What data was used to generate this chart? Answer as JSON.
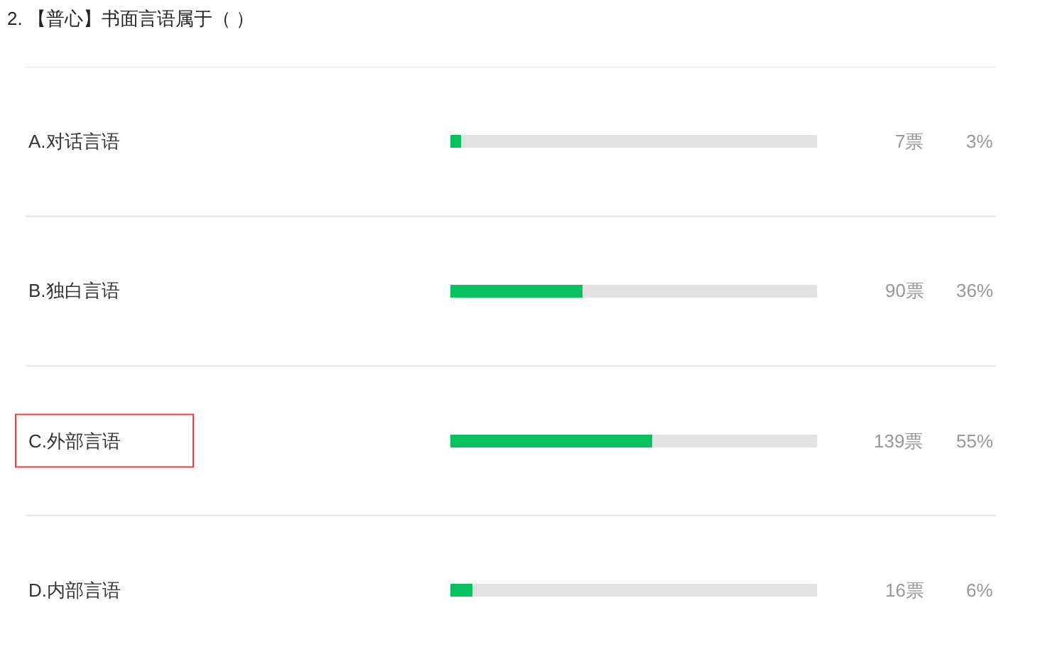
{
  "chart_data": {
    "type": "bar",
    "orientation": "horizontal",
    "stacked": true,
    "title": "2. 【普心】书面言语属于（ ）",
    "categories": [
      "A.对话言语",
      "B.独白言语",
      "C.外部言语",
      "D.内部言语"
    ],
    "xlim": [
      0,
      100
    ],
    "tick_labels": "y",
    "series": [
      {
        "color": "#07c160",
        "values": [
          3,
          36,
          55,
          6
        ],
        "value_labels": [
          "3%",
          "36%",
          "55%",
          "6%"
        ]
      },
      {
        "color": "#e2e2e3",
        "values": [
          97,
          64,
          45,
          94
        ]
      }
    ],
    "annotations": [
      "7票",
      "90票",
      "139票",
      "16票"
    ]
  }
}
